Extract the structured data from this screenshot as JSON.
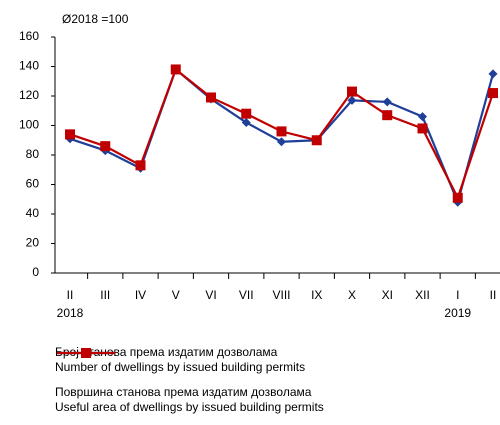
{
  "chart_data": {
    "type": "line",
    "annotation": "Ø2018 =100",
    "categories": [
      "II",
      "III",
      "IV",
      "V",
      "VI",
      "VII",
      "VIII",
      "IX",
      "X",
      "XI",
      "XII",
      "I",
      "II"
    ],
    "year_labels": [
      "2018",
      null,
      null,
      null,
      null,
      null,
      null,
      null,
      null,
      null,
      null,
      "2019",
      null
    ],
    "series": [
      {
        "name": "Број станова према издатим дозволама\nNumber of dwellings by issued building permits",
        "color": "#1f3f99",
        "marker": "diamond",
        "values": [
          91,
          83,
          71,
          138,
          118,
          102,
          89,
          90,
          117,
          116,
          106,
          48,
          135
        ]
      },
      {
        "name": "Површина станова према издатим дозволама\nUseful area of dwellings by issued building permits",
        "color": "#c00000",
        "marker": "square",
        "values": [
          94,
          86,
          73,
          138,
          119,
          108,
          96,
          90,
          123,
          107,
          98,
          51,
          122
        ]
      }
    ],
    "ylim": [
      0,
      160
    ],
    "yticks": [
      0,
      20,
      40,
      60,
      80,
      100,
      120,
      140,
      160
    ],
    "grid": false
  }
}
